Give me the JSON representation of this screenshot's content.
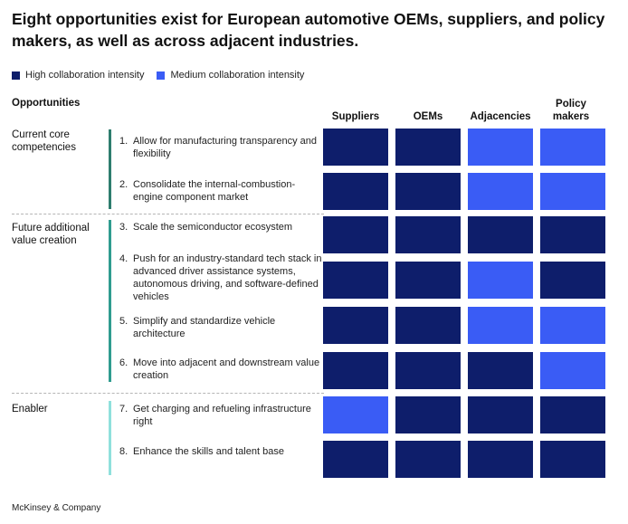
{
  "title": "Eight opportunities exist for European automotive OEMs, suppliers, and policy makers, as well as across adjacent industries.",
  "legend": [
    {
      "label": "High collaboration intensity",
      "color": "#0e1e6b"
    },
    {
      "label": "Medium collaboration intensity",
      "color": "#3a5cf5"
    }
  ],
  "opportunities_header": "Opportunities",
  "columns": [
    "Suppliers",
    "OEMs",
    "Adjacencies",
    "Policy makers"
  ],
  "groups": [
    {
      "label": "Current core competencies",
      "bar_color": "#2e7d6e"
    },
    {
      "label": "Future additional value creation",
      "bar_color": "#2f9c8f"
    },
    {
      "label": "Enabler",
      "bar_color": "#8fe0dc"
    }
  ],
  "items": [
    {
      "num": "1.",
      "text": "Allow for manufacturing transparency and flexibility"
    },
    {
      "num": "2.",
      "text": "Consolidate the internal-combustion-engine component market"
    },
    {
      "num": "3.",
      "text": "Scale the semiconductor ecosystem"
    },
    {
      "num": "4.",
      "text": "Push for an industry-standard tech stack in advanced driver assistance systems, autonomous driving, and software-defined vehicles"
    },
    {
      "num": "5.",
      "text": "Simplify and standardize vehicle architecture"
    },
    {
      "num": "6.",
      "text": "Move into adjacent and downstream value creation"
    },
    {
      "num": "7.",
      "text": "Get charging and refueling infrastructure right"
    },
    {
      "num": "8.",
      "text": "Enhance the skills and talent base"
    }
  ],
  "chart_data": {
    "type": "heatmap",
    "title": "Eight opportunities exist for European automotive OEMs, suppliers, and policy makers, as well as across adjacent industries.",
    "columns": [
      "Suppliers",
      "OEMs",
      "Adjacencies",
      "Policy makers"
    ],
    "rows": [
      "1. Allow for manufacturing transparency and flexibility",
      "2. Consolidate the internal-combustion-engine component market",
      "3. Scale the semiconductor ecosystem",
      "4. Push for an industry-standard tech stack in advanced driver assistance systems, autonomous driving, and software-defined vehicles",
      "5. Simplify and standardize vehicle architecture",
      "6. Move into adjacent and downstream value creation",
      "7. Get charging and refueling infrastructure right",
      "8. Enhance the skills and talent base"
    ],
    "levels": {
      "H": "High collaboration intensity",
      "M": "Medium collaboration intensity"
    },
    "values": [
      [
        "H",
        "H",
        "M",
        "M"
      ],
      [
        "H",
        "H",
        "M",
        "M"
      ],
      [
        "H",
        "H",
        "H",
        "H"
      ],
      [
        "H",
        "H",
        "M",
        "H"
      ],
      [
        "H",
        "H",
        "M",
        "M"
      ],
      [
        "H",
        "H",
        "H",
        "M"
      ],
      [
        "M",
        "H",
        "H",
        "H"
      ],
      [
        "H",
        "H",
        "H",
        "H"
      ]
    ],
    "colors": {
      "H": "#0e1e6b",
      "M": "#3a5cf5"
    }
  },
  "source": "McKinsey & Company"
}
